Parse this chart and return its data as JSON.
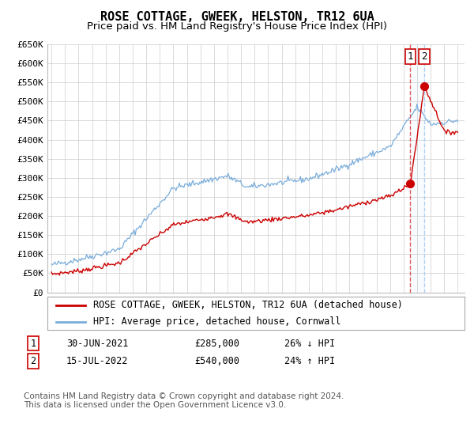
{
  "title": "ROSE COTTAGE, GWEEK, HELSTON, TR12 6UA",
  "subtitle": "Price paid vs. HM Land Registry's House Price Index (HPI)",
  "ylim": [
    0,
    650000
  ],
  "yticks": [
    0,
    50000,
    100000,
    150000,
    200000,
    250000,
    300000,
    350000,
    400000,
    450000,
    500000,
    550000,
    600000,
    650000
  ],
  "ytick_labels": [
    "£0",
    "£50K",
    "£100K",
    "£150K",
    "£200K",
    "£250K",
    "£300K",
    "£350K",
    "£400K",
    "£450K",
    "£500K",
    "£550K",
    "£600K",
    "£650K"
  ],
  "xlim_start": 1994.7,
  "xlim_end": 2025.5,
  "transaction1_x": 2021.5,
  "transaction1_y": 285000,
  "transaction1_label": "1",
  "transaction1_date": "30-JUN-2021",
  "transaction1_price": "£285,000",
  "transaction1_hpi": "26% ↓ HPI",
  "transaction2_x": 2022.54,
  "transaction2_y": 540000,
  "transaction2_label": "2",
  "transaction2_date": "15-JUL-2022",
  "transaction2_price": "£540,000",
  "transaction2_hpi": "24% ↑ HPI",
  "line_red_color": "#cc0000",
  "line_blue_color": "#7aaddb",
  "marker_color": "#cc0000",
  "dashed1_color": "#dd4444",
  "dashed2_color": "#aaccee",
  "shade_color": "#ddeeff",
  "grid_color": "#cccccc",
  "background_color": "#ffffff",
  "legend1_label": "ROSE COTTAGE, GWEEK, HELSTON, TR12 6UA (detached house)",
  "legend2_label": "HPI: Average price, detached house, Cornwall",
  "footer": "Contains HM Land Registry data © Crown copyright and database right 2024.\nThis data is licensed under the Open Government Licence v3.0.",
  "title_fontsize": 11,
  "subtitle_fontsize": 9.5,
  "tick_fontsize": 8,
  "legend_fontsize": 8.5,
  "footer_fontsize": 7.5
}
